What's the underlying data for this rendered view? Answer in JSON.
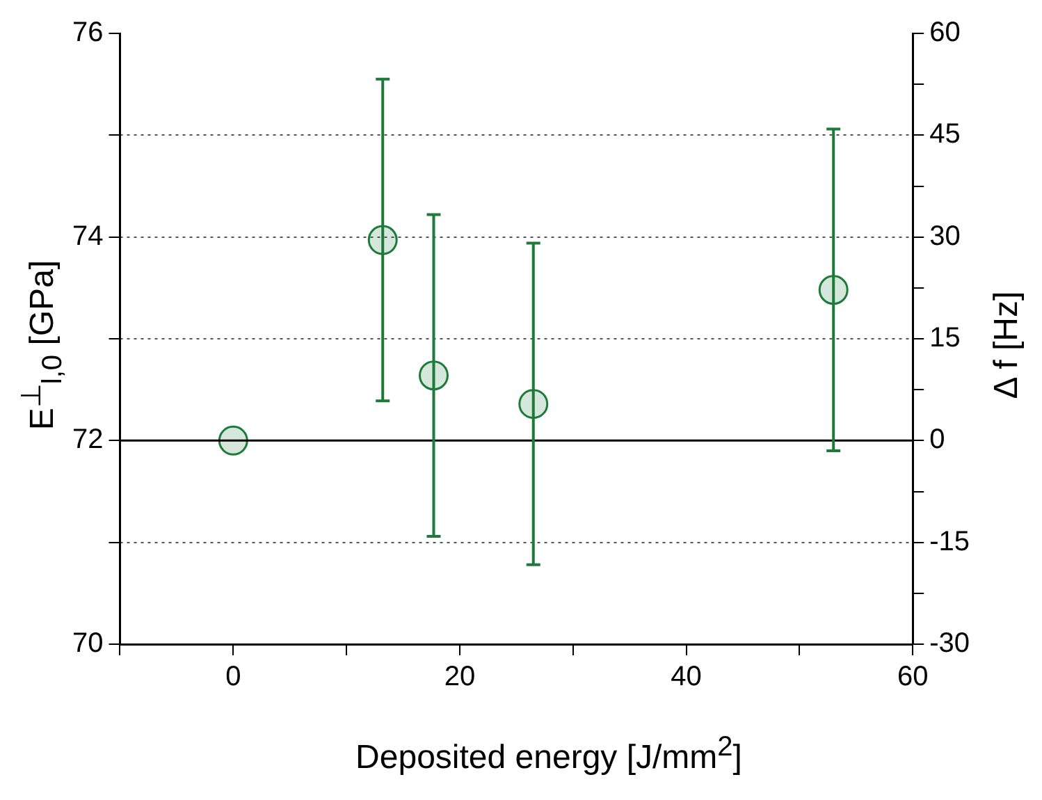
{
  "chart_data": {
    "type": "scatter",
    "xlabel": "Deposited energy [J/mm$^{2}$]",
    "ylabel": "E$^{⊥}$$_{l,0}$  [GPa]",
    "y2label": "Δ f [Hz]",
    "x": [
      0,
      13.2,
      17.7,
      26.5,
      53.0
    ],
    "series": [
      {
        "color": "#1e7a3a",
        "values": [
          72,
          73.97,
          72.64,
          72.36,
          73.48
        ],
        "errors": [
          null,
          1.58,
          1.58,
          1.58,
          1.58
        ]
      }
    ],
    "marker": "circle",
    "xlim": [
      -10,
      60
    ],
    "xticks": [
      {
        "value": -10,
        "label": null
      },
      0,
      {
        "value": 10,
        "label": null
      },
      20,
      {
        "value": 30,
        "label": null
      },
      40,
      {
        "value": 50,
        "label": null
      },
      60
    ],
    "ylim": [
      70,
      76
    ],
    "yticks": [
      70,
      {
        "value": 71,
        "label": null
      },
      72,
      {
        "value": 73,
        "label": null
      },
      74,
      {
        "value": 75,
        "label": null
      },
      76
    ],
    "y2lim": [
      -30,
      60
    ],
    "y2ticks": [
      -30,
      {
        "value": -22.5,
        "label": null
      },
      -15,
      {
        "value": -7.5,
        "label": null
      },
      0,
      {
        "value": 7.5,
        "label": null
      },
      15,
      {
        "value": 22.5,
        "label": null
      },
      30,
      {
        "value": 37.5,
        "label": null
      },
      45,
      {
        "value": 52.5,
        "label": null
      },
      60
    ],
    "ref_lines": [
      {
        "axis": "y",
        "value": 72,
        "color": "#000000",
        "line_style": "solid"
      }
    ],
    "grid": "y",
    "legend": false
  }
}
